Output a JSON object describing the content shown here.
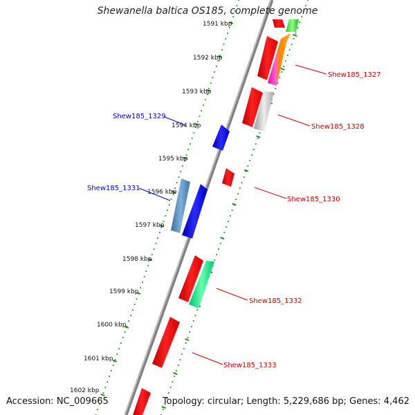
{
  "title": "Shewanella baltica OS185, complete genome",
  "footer": {
    "accession": "Accession: NC_009665",
    "topology": "Topology: circular; Length: 5,229,686 bp; Genes: 4,462"
  },
  "ticks": [
    "1591 kbp",
    "1592 kbp",
    "1593 kbp",
    "1594 kbp",
    "1595 kbp",
    "1596 kbp",
    "1597 kbp",
    "1598 kbp",
    "1599 kbp",
    "1600 kbp",
    "1601 kbp",
    "1602 kbp"
  ],
  "gene_labels": {
    "left": [
      "Shew185_1329",
      "Shew185_1331"
    ],
    "right": [
      "Shew185_1327",
      "Shew185_1328",
      "Shew185_1330",
      "Shew185_1332",
      "Shew185_1333"
    ]
  },
  "colors": {
    "backbone": "#808080",
    "dotted_ring": "#228B22",
    "forward_gene": "#ff0000",
    "reverse_gene": "#0000ff",
    "reverse_gene_alt": "#4682b4",
    "gene_alt_green": "#00ee77",
    "gene_gray": "#bbbbbb",
    "gene_orange": "#ff8800",
    "gene_magenta": "#ee00aa",
    "label_left": "#0000cc",
    "label_right": "#cc0000"
  }
}
